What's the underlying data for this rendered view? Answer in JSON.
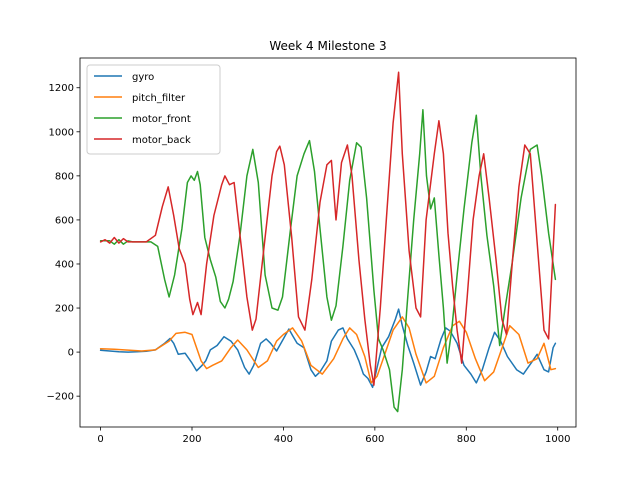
{
  "chart_data": {
    "type": "line",
    "title": "Week 4 Milestone 3",
    "xlabel": "",
    "ylabel": "",
    "xlim": [
      -45,
      1040
    ],
    "ylim": [
      -340,
      1335
    ],
    "xticks": [
      0,
      200,
      400,
      600,
      800,
      1000
    ],
    "yticks": [
      -200,
      0,
      200,
      400,
      600,
      800,
      1000,
      1200
    ],
    "xtick_labels": [
      "0",
      "200",
      "400",
      "600",
      "800",
      "1000"
    ],
    "ytick_labels": [
      "−200",
      "0",
      "200",
      "400",
      "600",
      "800",
      "1000",
      "1200"
    ],
    "grid": false,
    "legend_position": "top-left",
    "series": [
      {
        "name": "gyro",
        "color": "#1f77b4",
        "points": [
          [
            0,
            8
          ],
          [
            20,
            5
          ],
          [
            40,
            2
          ],
          [
            60,
            0
          ],
          [
            80,
            2
          ],
          [
            100,
            4
          ],
          [
            120,
            10
          ],
          [
            140,
            40
          ],
          [
            152,
            62
          ],
          [
            160,
            40
          ],
          [
            170,
            -10
          ],
          [
            185,
            -5
          ],
          [
            200,
            -50
          ],
          [
            210,
            -85
          ],
          [
            222,
            -60
          ],
          [
            230,
            -40
          ],
          [
            240,
            10
          ],
          [
            255,
            30
          ],
          [
            270,
            70
          ],
          [
            285,
            50
          ],
          [
            300,
            10
          ],
          [
            315,
            -70
          ],
          [
            325,
            -100
          ],
          [
            335,
            -60
          ],
          [
            350,
            40
          ],
          [
            362,
            60
          ],
          [
            372,
            40
          ],
          [
            385,
            5
          ],
          [
            400,
            60
          ],
          [
            412,
            105
          ],
          [
            420,
            75
          ],
          [
            430,
            40
          ],
          [
            445,
            20
          ],
          [
            460,
            -80
          ],
          [
            470,
            -110
          ],
          [
            480,
            -90
          ],
          [
            495,
            -40
          ],
          [
            505,
            50
          ],
          [
            520,
            100
          ],
          [
            530,
            110
          ],
          [
            540,
            60
          ],
          [
            555,
            10
          ],
          [
            565,
            -40
          ],
          [
            575,
            -100
          ],
          [
            585,
            -120
          ],
          [
            595,
            -160
          ],
          [
            605,
            -70
          ],
          [
            615,
            20
          ],
          [
            630,
            70
          ],
          [
            645,
            150
          ],
          [
            652,
            195
          ],
          [
            660,
            120
          ],
          [
            672,
            30
          ],
          [
            685,
            -50
          ],
          [
            700,
            -150
          ],
          [
            712,
            -90
          ],
          [
            722,
            -20
          ],
          [
            732,
            -30
          ],
          [
            745,
            60
          ],
          [
            755,
            110
          ],
          [
            765,
            95
          ],
          [
            780,
            40
          ],
          [
            795,
            -60
          ],
          [
            810,
            -100
          ],
          [
            822,
            -140
          ],
          [
            835,
            -80
          ],
          [
            850,
            20
          ],
          [
            862,
            90
          ],
          [
            875,
            50
          ],
          [
            890,
            -20
          ],
          [
            910,
            -80
          ],
          [
            925,
            -100
          ],
          [
            945,
            -40
          ],
          [
            955,
            -10
          ],
          [
            970,
            -80
          ],
          [
            980,
            -90
          ],
          [
            990,
            20
          ],
          [
            995,
            40
          ]
        ]
      },
      {
        "name": "pitch_filter",
        "color": "#ff7f0e",
        "points": [
          [
            0,
            15
          ],
          [
            30,
            13
          ],
          [
            60,
            9
          ],
          [
            90,
            5
          ],
          [
            120,
            10
          ],
          [
            150,
            50
          ],
          [
            165,
            85
          ],
          [
            185,
            90
          ],
          [
            200,
            80
          ],
          [
            220,
            -40
          ],
          [
            232,
            -75
          ],
          [
            245,
            -60
          ],
          [
            265,
            -40
          ],
          [
            285,
            20
          ],
          [
            300,
            55
          ],
          [
            320,
            10
          ],
          [
            345,
            -70
          ],
          [
            365,
            -40
          ],
          [
            385,
            50
          ],
          [
            400,
            80
          ],
          [
            420,
            110
          ],
          [
            440,
            50
          ],
          [
            460,
            -60
          ],
          [
            485,
            -100
          ],
          [
            510,
            -30
          ],
          [
            530,
            60
          ],
          [
            545,
            110
          ],
          [
            560,
            80
          ],
          [
            578,
            -20
          ],
          [
            592,
            -140
          ],
          [
            605,
            -110
          ],
          [
            620,
            -20
          ],
          [
            640,
            100
          ],
          [
            660,
            160
          ],
          [
            675,
            110
          ],
          [
            690,
            -10
          ],
          [
            712,
            -140
          ],
          [
            730,
            -110
          ],
          [
            750,
            20
          ],
          [
            770,
            120
          ],
          [
            785,
            140
          ],
          [
            800,
            90
          ],
          [
            820,
            -30
          ],
          [
            840,
            -130
          ],
          [
            860,
            -90
          ],
          [
            880,
            30
          ],
          [
            895,
            120
          ],
          [
            915,
            80
          ],
          [
            935,
            -50
          ],
          [
            955,
            -30
          ],
          [
            970,
            40
          ],
          [
            985,
            -80
          ],
          [
            995,
            -75
          ]
        ]
      },
      {
        "name": "motor_front",
        "color": "#2ca02c",
        "points": [
          [
            0,
            505
          ],
          [
            20,
            505
          ],
          [
            30,
            490
          ],
          [
            40,
            510
          ],
          [
            50,
            490
          ],
          [
            60,
            505
          ],
          [
            70,
            500
          ],
          [
            90,
            500
          ],
          [
            110,
            500
          ],
          [
            125,
            480
          ],
          [
            140,
            330
          ],
          [
            150,
            250
          ],
          [
            162,
            350
          ],
          [
            178,
            560
          ],
          [
            190,
            770
          ],
          [
            198,
            800
          ],
          [
            205,
            780
          ],
          [
            212,
            820
          ],
          [
            218,
            760
          ],
          [
            228,
            520
          ],
          [
            240,
            420
          ],
          [
            252,
            340
          ],
          [
            262,
            230
          ],
          [
            272,
            200
          ],
          [
            280,
            240
          ],
          [
            290,
            320
          ],
          [
            305,
            530
          ],
          [
            320,
            800
          ],
          [
            333,
            920
          ],
          [
            345,
            770
          ],
          [
            360,
            350
          ],
          [
            375,
            200
          ],
          [
            388,
            190
          ],
          [
            398,
            250
          ],
          [
            415,
            550
          ],
          [
            430,
            800
          ],
          [
            445,
            900
          ],
          [
            457,
            960
          ],
          [
            468,
            820
          ],
          [
            480,
            560
          ],
          [
            495,
            250
          ],
          [
            505,
            145
          ],
          [
            515,
            210
          ],
          [
            530,
            480
          ],
          [
            545,
            780
          ],
          [
            560,
            950
          ],
          [
            570,
            930
          ],
          [
            582,
            700
          ],
          [
            598,
            280
          ],
          [
            608,
            60
          ],
          [
            618,
            10
          ],
          [
            632,
            -80
          ],
          [
            642,
            -250
          ],
          [
            650,
            -270
          ],
          [
            660,
            -80
          ],
          [
            670,
            200
          ],
          [
            685,
            600
          ],
          [
            698,
            900
          ],
          [
            705,
            1100
          ],
          [
            713,
            800
          ],
          [
            722,
            650
          ],
          [
            730,
            700
          ],
          [
            740,
            440
          ],
          [
            750,
            200
          ],
          [
            758,
            -50
          ],
          [
            768,
            100
          ],
          [
            780,
            350
          ],
          [
            795,
            650
          ],
          [
            812,
            950
          ],
          [
            822,
            1075
          ],
          [
            832,
            800
          ],
          [
            845,
            530
          ],
          [
            860,
            300
          ],
          [
            873,
            30
          ],
          [
            885,
            200
          ],
          [
            900,
            400
          ],
          [
            920,
            700
          ],
          [
            940,
            920
          ],
          [
            955,
            940
          ],
          [
            965,
            800
          ],
          [
            980,
            540
          ],
          [
            995,
            330
          ]
        ]
      },
      {
        "name": "motor_back",
        "color": "#d62728",
        "points": [
          [
            0,
            500
          ],
          [
            10,
            510
          ],
          [
            20,
            495
          ],
          [
            30,
            520
          ],
          [
            40,
            495
          ],
          [
            50,
            515
          ],
          [
            60,
            500
          ],
          [
            80,
            500
          ],
          [
            100,
            500
          ],
          [
            120,
            530
          ],
          [
            135,
            660
          ],
          [
            148,
            750
          ],
          [
            160,
            620
          ],
          [
            172,
            470
          ],
          [
            185,
            400
          ],
          [
            195,
            240
          ],
          [
            202,
            170
          ],
          [
            212,
            225
          ],
          [
            220,
            170
          ],
          [
            232,
            400
          ],
          [
            248,
            620
          ],
          [
            265,
            760
          ],
          [
            272,
            800
          ],
          [
            282,
            760
          ],
          [
            292,
            770
          ],
          [
            305,
            530
          ],
          [
            320,
            250
          ],
          [
            332,
            100
          ],
          [
            340,
            150
          ],
          [
            360,
            520
          ],
          [
            375,
            800
          ],
          [
            385,
            910
          ],
          [
            392,
            935
          ],
          [
            402,
            850
          ],
          [
            418,
            520
          ],
          [
            433,
            160
          ],
          [
            447,
            100
          ],
          [
            462,
            330
          ],
          [
            480,
            680
          ],
          [
            495,
            850
          ],
          [
            505,
            870
          ],
          [
            515,
            600
          ],
          [
            527,
            860
          ],
          [
            540,
            940
          ],
          [
            550,
            800
          ],
          [
            565,
            420
          ],
          [
            578,
            150
          ],
          [
            590,
            -60
          ],
          [
            598,
            -150
          ],
          [
            612,
            200
          ],
          [
            625,
            600
          ],
          [
            640,
            1040
          ],
          [
            652,
            1270
          ],
          [
            660,
            900
          ],
          [
            675,
            460
          ],
          [
            690,
            200
          ],
          [
            700,
            160
          ],
          [
            712,
            600
          ],
          [
            730,
            900
          ],
          [
            740,
            1050
          ],
          [
            750,
            900
          ],
          [
            760,
            540
          ],
          [
            770,
            300
          ],
          [
            780,
            100
          ],
          [
            790,
            -50
          ],
          [
            802,
            250
          ],
          [
            815,
            600
          ],
          [
            828,
            800
          ],
          [
            838,
            900
          ],
          [
            850,
            700
          ],
          [
            865,
            420
          ],
          [
            878,
            150
          ],
          [
            888,
            80
          ],
          [
            902,
            440
          ],
          [
            915,
            750
          ],
          [
            928,
            940
          ],
          [
            940,
            900
          ],
          [
            955,
            500
          ],
          [
            970,
            100
          ],
          [
            980,
            60
          ],
          [
            995,
            670
          ]
        ]
      }
    ]
  }
}
